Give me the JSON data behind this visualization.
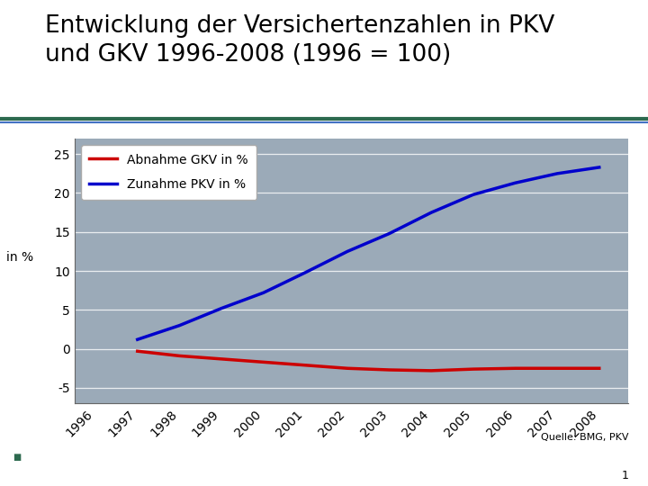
{
  "title_line1": "Entwicklung der Versichertenzahlen in PKV",
  "title_line2": "und GKV 1996-2008 (1996 = 100)",
  "ylabel_outside": "in %",
  "source_text": "Quelle: BMG, PKV",
  "years": [
    1996,
    1997,
    1998,
    1999,
    2000,
    2001,
    2002,
    2003,
    2004,
    2005,
    2006,
    2007,
    2008
  ],
  "pkv": [
    null,
    1.2,
    3.0,
    5.2,
    7.2,
    9.8,
    12.5,
    14.8,
    17.5,
    19.8,
    21.3,
    22.5,
    23.3
  ],
  "gkv": [
    null,
    -0.3,
    -0.9,
    -1.3,
    -1.7,
    -2.1,
    -2.5,
    -2.7,
    -2.8,
    -2.6,
    -2.5,
    -2.5,
    -2.5
  ],
  "pkv_color": "#0000CC",
  "gkv_color": "#CC0000",
  "plot_bg_color": "#9BAAB8",
  "outer_bg_color": "#ffffff",
  "legend_gkv": "Abnahme GKV in %",
  "legend_pkv": "Zunahme PKV in %",
  "yticks": [
    -5,
    0,
    5,
    10,
    15,
    20,
    25
  ],
  "ylim": [
    -7,
    27
  ],
  "xticks": [
    1996,
    1997,
    1998,
    1999,
    2000,
    2001,
    2002,
    2003,
    2004,
    2005,
    2006,
    2007,
    2008
  ],
  "line_width": 2.5,
  "title_fontsize": 19,
  "axis_fontsize": 10,
  "legend_fontsize": 10,
  "source_fontsize": 8,
  "page_number": "1",
  "separator_green": "#2D6A4F",
  "separator_blue": "#4472C4",
  "green_dot_color": "#2D6A4F"
}
